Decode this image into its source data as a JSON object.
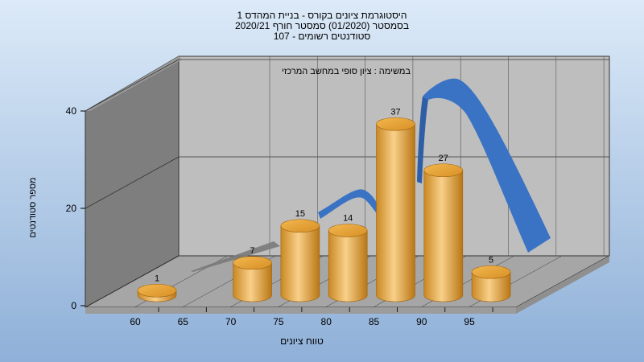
{
  "chart_data": {
    "type": "bar",
    "title_lines": [
      "היסטוגרמת ציונים בקורס - בניית המהדס 1",
      "בסמסטר  (01/2020)  סמסטר חורף  2020/21",
      "סטודנטים רשומים - 107"
    ],
    "subtitle": "במשימה : ציון סופי במחשב המרכזי",
    "xlabel": "טווח ציונים",
    "ylabel": "מספר סטודנטים",
    "ylim": [
      0,
      40
    ],
    "yticks": [
      "0",
      "20",
      "40"
    ],
    "categories": [
      "60",
      "65",
      "70",
      "75",
      "80",
      "85",
      "90",
      "95"
    ],
    "values": [
      1,
      null,
      7,
      15,
      14,
      37,
      27,
      5
    ],
    "data_labels": [
      "1",
      "",
      "7",
      "15",
      "14",
      "37",
      "27",
      "5"
    ],
    "grid": true,
    "colors": {
      "bar": "#E8A43C",
      "curve": "#3A73C4",
      "wall_back": "#BEBEBE",
      "wall_side": "#7E7E7E",
      "floor": "#A6A6A6",
      "background_top": "#DCEAF8",
      "background_bottom": "#8FB0D8"
    }
  }
}
